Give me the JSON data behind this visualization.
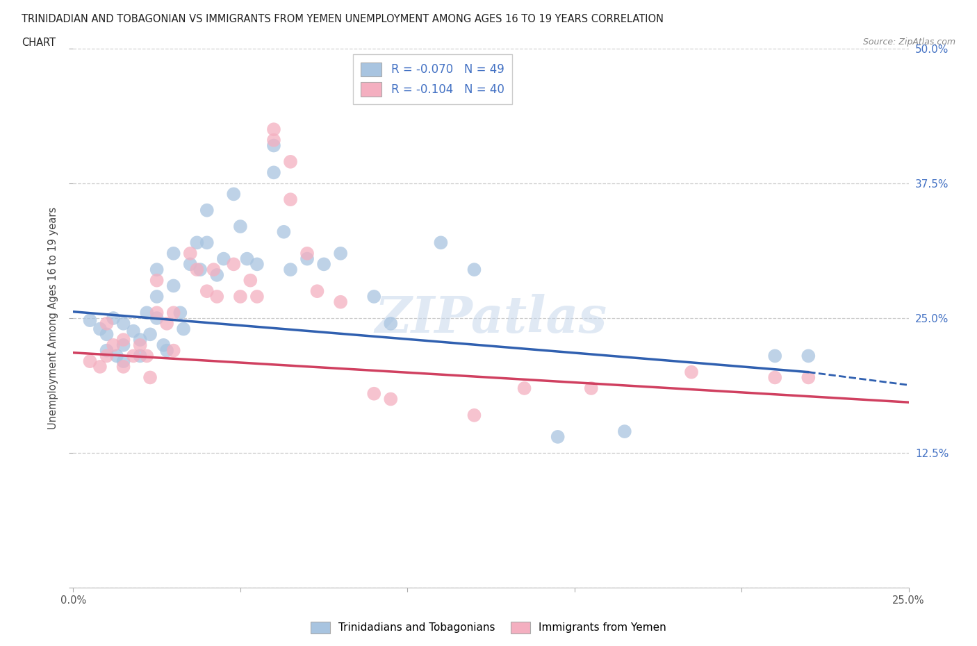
{
  "title_line1": "TRINIDADIAN AND TOBAGONIAN VS IMMIGRANTS FROM YEMEN UNEMPLOYMENT AMONG AGES 16 TO 19 YEARS CORRELATION",
  "title_line2": "CHART",
  "source": "Source: ZipAtlas.com",
  "ylabel": "Unemployment Among Ages 16 to 19 years",
  "xlim": [
    0.0,
    0.25
  ],
  "ylim": [
    0.0,
    0.5
  ],
  "yticks": [
    0.0,
    0.125,
    0.25,
    0.375,
    0.5
  ],
  "ytick_labels": [
    "",
    "12.5%",
    "25.0%",
    "37.5%",
    "50.0%"
  ],
  "xticks": [
    0.0,
    0.05,
    0.1,
    0.15,
    0.2,
    0.25
  ],
  "xtick_labels": [
    "0.0%",
    "",
    "",
    "",
    "",
    "25.0%"
  ],
  "blue_R": -0.07,
  "blue_N": 49,
  "pink_R": -0.104,
  "pink_N": 40,
  "blue_color": "#a8c4e0",
  "pink_color": "#f4afc0",
  "blue_line_color": "#3060b0",
  "pink_line_color": "#d04060",
  "watermark_text": "ZIPatlas",
  "blue_line_x0": 0.0,
  "blue_line_y0": 0.256,
  "blue_line_x1": 0.22,
  "blue_line_y1": 0.2,
  "blue_line_xdash_end": 0.25,
  "blue_line_ydash_end": 0.188,
  "pink_line_x0": 0.0,
  "pink_line_y0": 0.218,
  "pink_line_x1": 0.25,
  "pink_line_y1": 0.172,
  "blue_scatter_x": [
    0.005,
    0.008,
    0.01,
    0.01,
    0.012,
    0.013,
    0.015,
    0.015,
    0.015,
    0.018,
    0.02,
    0.02,
    0.022,
    0.023,
    0.025,
    0.025,
    0.025,
    0.027,
    0.028,
    0.03,
    0.03,
    0.032,
    0.033,
    0.035,
    0.037,
    0.038,
    0.04,
    0.04,
    0.043,
    0.045,
    0.048,
    0.05,
    0.052,
    0.055,
    0.06,
    0.06,
    0.063,
    0.065,
    0.07,
    0.075,
    0.08,
    0.09,
    0.095,
    0.11,
    0.12,
    0.145,
    0.165,
    0.21,
    0.22
  ],
  "blue_scatter_y": [
    0.248,
    0.24,
    0.235,
    0.22,
    0.25,
    0.215,
    0.245,
    0.225,
    0.21,
    0.238,
    0.23,
    0.215,
    0.255,
    0.235,
    0.295,
    0.27,
    0.25,
    0.225,
    0.22,
    0.31,
    0.28,
    0.255,
    0.24,
    0.3,
    0.32,
    0.295,
    0.35,
    0.32,
    0.29,
    0.305,
    0.365,
    0.335,
    0.305,
    0.3,
    0.385,
    0.41,
    0.33,
    0.295,
    0.305,
    0.3,
    0.31,
    0.27,
    0.245,
    0.32,
    0.295,
    0.14,
    0.145,
    0.215,
    0.215
  ],
  "pink_scatter_x": [
    0.005,
    0.008,
    0.01,
    0.01,
    0.012,
    0.015,
    0.015,
    0.018,
    0.02,
    0.022,
    0.023,
    0.025,
    0.025,
    0.028,
    0.03,
    0.03,
    0.035,
    0.037,
    0.04,
    0.042,
    0.043,
    0.048,
    0.05,
    0.053,
    0.055,
    0.06,
    0.06,
    0.065,
    0.065,
    0.07,
    0.073,
    0.08,
    0.09,
    0.095,
    0.12,
    0.135,
    0.155,
    0.185,
    0.21,
    0.22
  ],
  "pink_scatter_y": [
    0.21,
    0.205,
    0.245,
    0.215,
    0.225,
    0.23,
    0.205,
    0.215,
    0.225,
    0.215,
    0.195,
    0.285,
    0.255,
    0.245,
    0.255,
    0.22,
    0.31,
    0.295,
    0.275,
    0.295,
    0.27,
    0.3,
    0.27,
    0.285,
    0.27,
    0.415,
    0.425,
    0.395,
    0.36,
    0.31,
    0.275,
    0.265,
    0.18,
    0.175,
    0.16,
    0.185,
    0.185,
    0.2,
    0.195,
    0.195
  ]
}
